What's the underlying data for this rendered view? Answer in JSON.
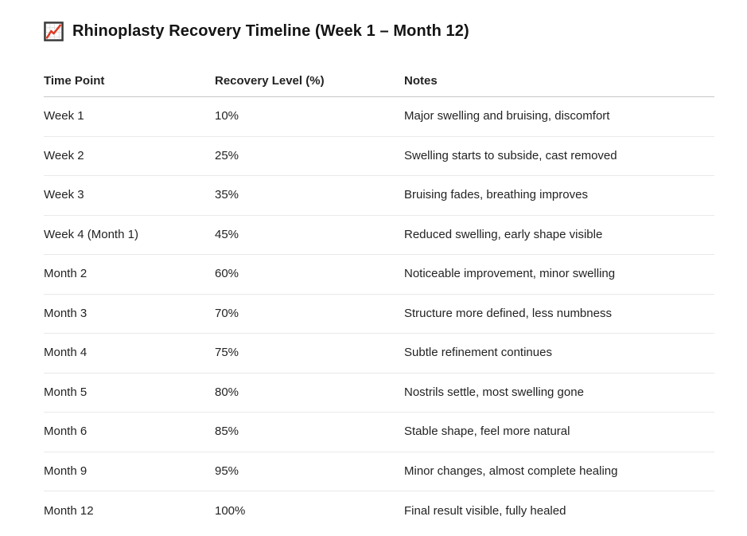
{
  "title": {
    "icon": "chart-increasing",
    "text": "Rhinoplasty Recovery Timeline (Week 1 – Month 12)"
  },
  "table": {
    "columns": [
      "Time Point",
      "Recovery Level (%)",
      "Notes"
    ],
    "rows": [
      [
        "Week 1",
        "10%",
        "Major swelling and bruising, discomfort"
      ],
      [
        "Week 2",
        "25%",
        "Swelling starts to subside, cast removed"
      ],
      [
        "Week 3",
        "35%",
        "Bruising fades, breathing improves"
      ],
      [
        "Week 4 (Month 1)",
        "45%",
        "Reduced swelling, early shape visible"
      ],
      [
        "Month 2",
        "60%",
        "Noticeable improvement, minor swelling"
      ],
      [
        "Month 3",
        "70%",
        "Structure more defined, less numbness"
      ],
      [
        "Month 4",
        "75%",
        "Subtle refinement continues"
      ],
      [
        "Month 5",
        "80%",
        "Nostrils settle, most swelling gone"
      ],
      [
        "Month 6",
        "85%",
        "Stable shape, feel more natural"
      ],
      [
        "Month 9",
        "95%",
        "Minor changes, almost complete healing"
      ],
      [
        "Month 12",
        "100%",
        "Final result visible, fully healed"
      ]
    ]
  },
  "colors": {
    "background": "#ffffff",
    "title_text": "#141414",
    "body_text": "#232323",
    "header_divider": "#c6c6c6",
    "row_divider": "#e9e9e9",
    "emoji_line_red": "#df3a23",
    "emoji_border": "#3a3a3a"
  }
}
